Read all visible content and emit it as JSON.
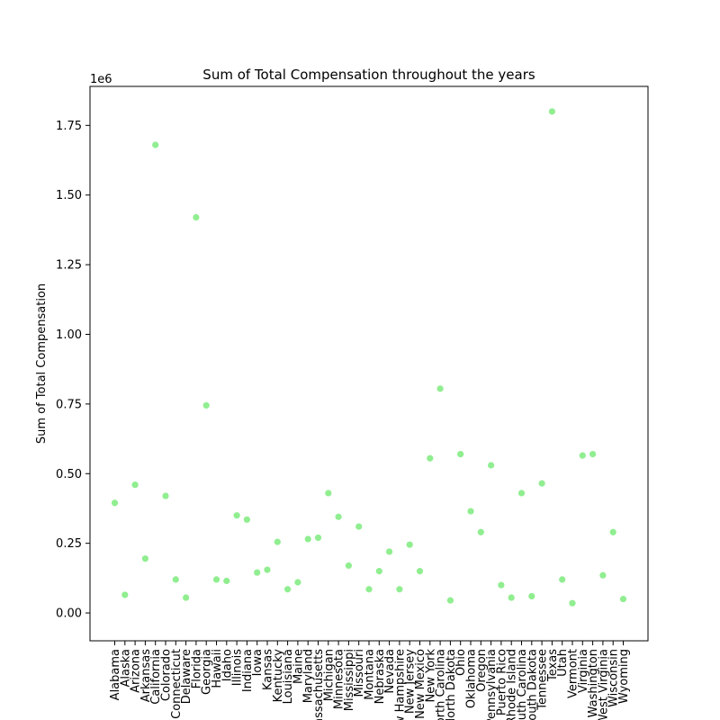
{
  "chart_data": {
    "type": "scatter",
    "title": "Sum of Total Compensation throughout the years",
    "xlabel": "",
    "ylabel": "Sum of Total Compensation",
    "y_offset_label": "1e6",
    "y_unit_multiplier": 1000000,
    "ylim": [
      -0.1,
      1.89
    ],
    "yticks": [
      0.0,
      0.25,
      0.5,
      0.75,
      1.0,
      1.25,
      1.5,
      1.75
    ],
    "ytick_labels": [
      "0.00",
      "0.25",
      "0.50",
      "0.75",
      "1.00",
      "1.25",
      "1.50",
      "1.75"
    ],
    "grid": false,
    "legend": "none",
    "marker_color": "#90EE90",
    "categories": [
      "Alabama",
      "Alaska",
      "Arizona",
      "Arkansas",
      "California",
      "Colorado",
      "Connecticut",
      "Delaware",
      "Florida",
      "Georgia",
      "Hawaii",
      "Idaho",
      "Illinois",
      "Indiana",
      "Iowa",
      "Kansas",
      "Kentucky",
      "Louisiana",
      "Maine",
      "Maryland",
      "Massachusetts",
      "Michigan",
      "Minnesota",
      "Mississippi",
      "Missouri",
      "Montana",
      "Nebraska",
      "Nevada",
      "New Hampshire",
      "New Jersey",
      "New Mexico",
      "New York",
      "North Carolina",
      "North Dakota",
      "Ohio",
      "Oklahoma",
      "Oregon",
      "Pennsylvania",
      "Puerto Rico",
      "Rhode Island",
      "South Carolina",
      "South Dakota",
      "Tennessee",
      "Texas",
      "Utah",
      "Vermont",
      "Virginia",
      "Washington",
      "West Virginia",
      "Wisconsin",
      "Wyoming"
    ],
    "values": [
      0.395,
      0.065,
      0.46,
      0.195,
      1.68,
      0.42,
      0.12,
      0.055,
      1.42,
      0.745,
      0.12,
      0.115,
      0.35,
      0.335,
      0.145,
      0.155,
      0.255,
      0.085,
      0.11,
      0.265,
      0.27,
      0.43,
      0.345,
      0.17,
      0.31,
      0.085,
      0.15,
      0.22,
      0.085,
      0.245,
      0.15,
      0.555,
      0.805,
      0.045,
      0.57,
      0.365,
      0.29,
      0.53,
      0.1,
      0.055,
      0.43,
      0.06,
      0.465,
      1.8,
      0.12,
      0.035,
      0.565,
      0.57,
      0.135,
      0.29,
      0.05
    ]
  }
}
